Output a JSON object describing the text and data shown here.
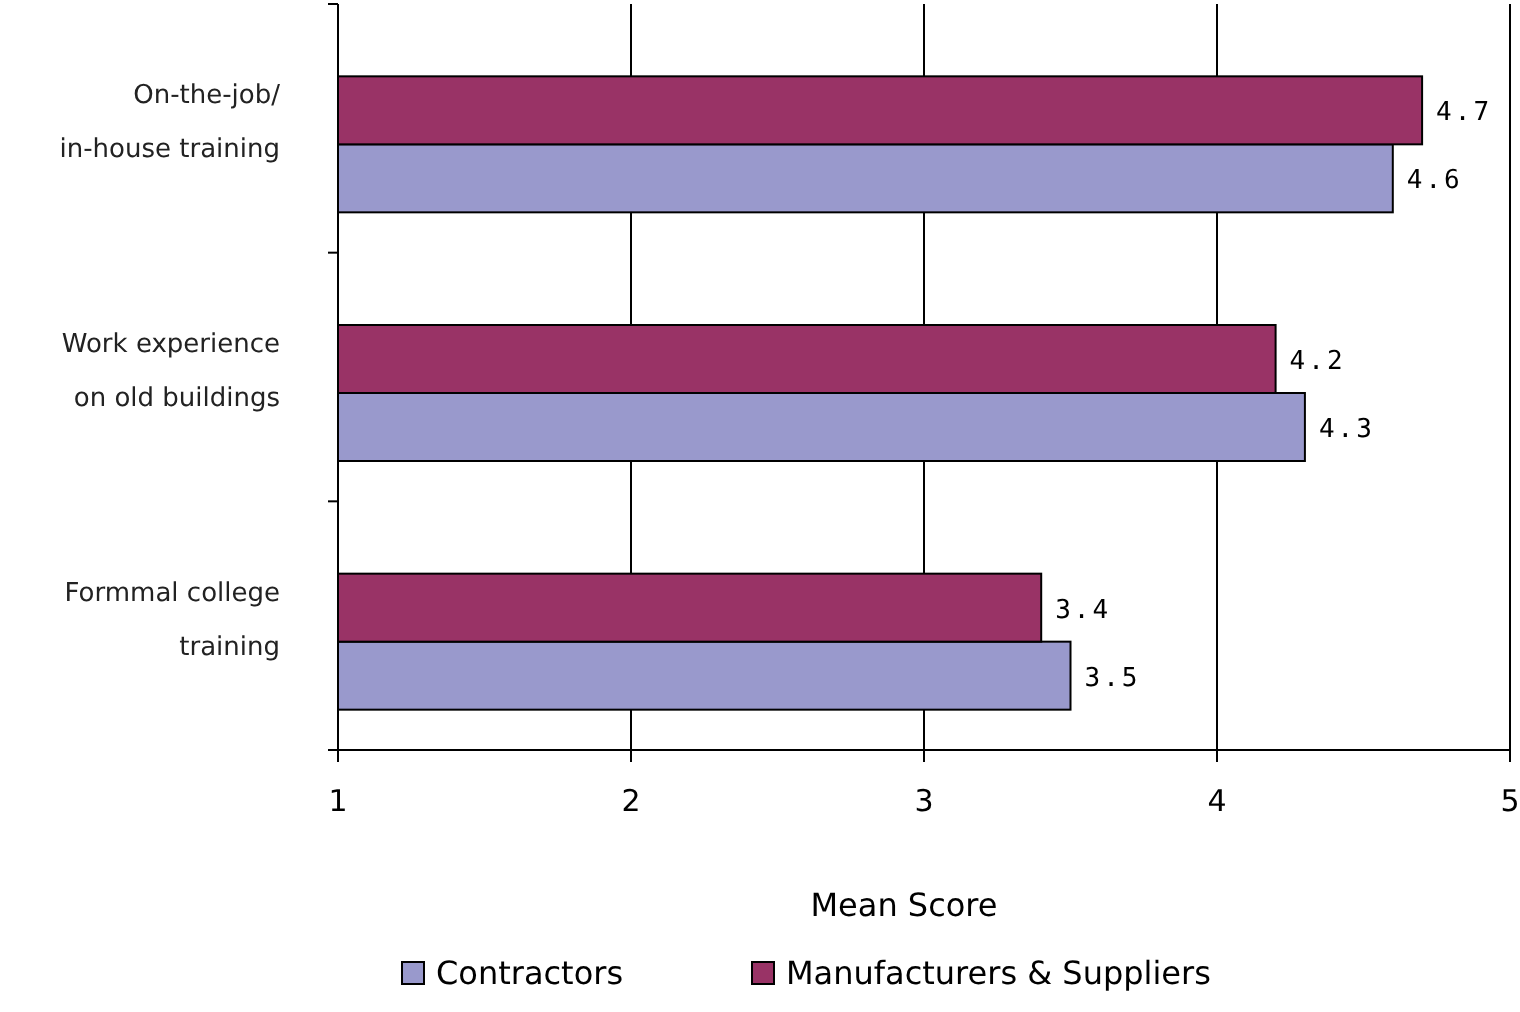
{
  "chart_data": {
    "type": "bar",
    "orientation": "horizontal",
    "xlabel": "Mean Score",
    "categories": [
      "On-the-job/ in-house training",
      "Work experience on old buildings",
      "Formmal college training"
    ],
    "series": [
      {
        "name": "Contractors",
        "color": "#9999cc",
        "values": [
          4.6,
          4.3,
          3.5
        ]
      },
      {
        "name": "Manufacturers & Suppliers",
        "color": "#993366",
        "values": [
          4.7,
          4.2,
          3.4
        ]
      }
    ],
    "xlim": [
      1,
      5
    ],
    "xticks": [
      1,
      2,
      3,
      4,
      5
    ],
    "grid": "x",
    "legend": "bottom",
    "data_labels": true
  }
}
